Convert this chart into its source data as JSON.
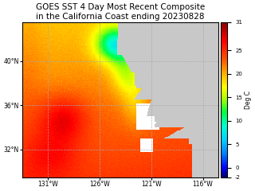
{
  "title_line1": "GOES SST 4 Day Most Recent Composite",
  "title_line2": "in the California Coast ending 20230828",
  "title_fontsize": 7.5,
  "colorbar_label": "Deg C",
  "colorbar_ticks": [
    -2,
    0,
    5,
    10,
    15,
    20,
    25,
    31
  ],
  "vmin": -2,
  "vmax": 31,
  "lon_min": -133.5,
  "lon_max": -114.5,
  "lat_min": 29.5,
  "lat_max": 43.5,
  "xticks": [
    -131,
    -126,
    -121,
    -116
  ],
  "yticks": [
    32,
    36,
    40
  ],
  "grid_color": "#aaaaaa",
  "grid_linestyle": "--",
  "grid_linewidth": 0.5,
  "background_color": "#ffffff",
  "sst_colors": [
    [
      0.0,
      "#00006E"
    ],
    [
      0.06,
      "#0000FF"
    ],
    [
      0.15,
      "#007FFF"
    ],
    [
      0.24,
      "#00CFFF"
    ],
    [
      0.33,
      "#00FFCF"
    ],
    [
      0.42,
      "#00FF40"
    ],
    [
      0.51,
      "#AFFF00"
    ],
    [
      0.58,
      "#FFFF00"
    ],
    [
      0.67,
      "#FFB000"
    ],
    [
      0.76,
      "#FF5500"
    ],
    [
      0.88,
      "#FF0000"
    ],
    [
      1.0,
      "#8B0000"
    ]
  ],
  "base_sst_offshore": 22.0,
  "land_color": "#c8c8c8"
}
